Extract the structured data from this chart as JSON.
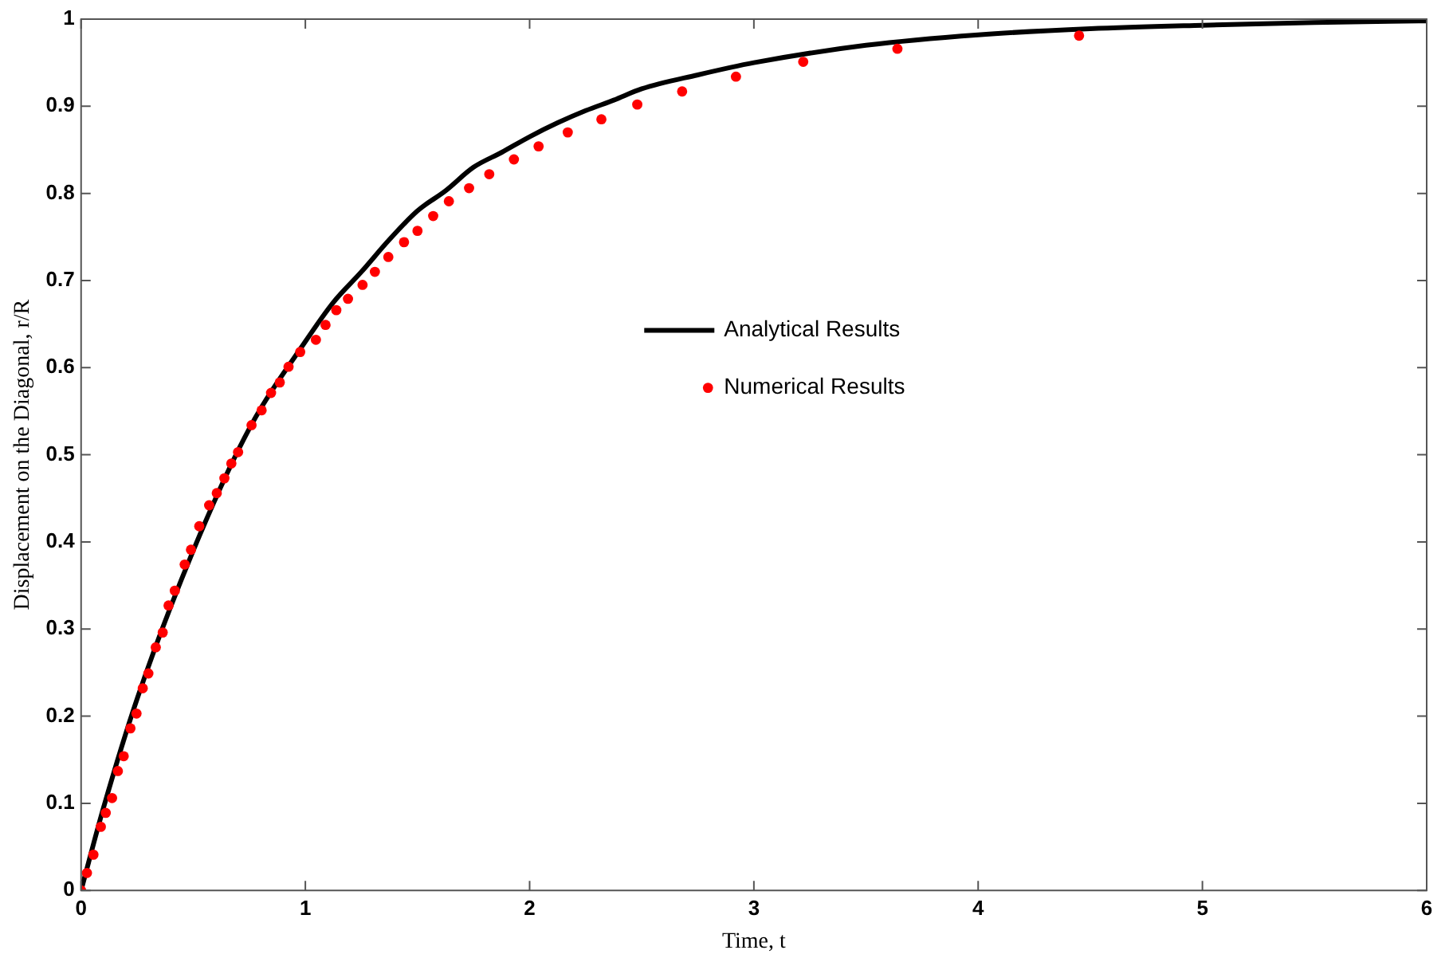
{
  "chart_data": {
    "type": "line",
    "xlabel": "Time, t",
    "ylabel": "Displacement on the Diagonal, r/R",
    "xlim": [
      0,
      6
    ],
    "ylim": [
      0,
      1
    ],
    "xticks": [
      0,
      1,
      2,
      3,
      4,
      5,
      6
    ],
    "yticks": [
      0,
      0.1,
      0.2,
      0.3,
      0.4,
      0.5,
      0.6,
      0.7,
      0.8,
      0.9,
      1
    ],
    "grid": false,
    "legend": "center",
    "series": [
      {
        "name": "Analytical Results",
        "type": "line",
        "color": "#000000",
        "marker": "none",
        "x": [
          0,
          0.1,
          0.25,
          0.5,
          0.75,
          1,
          1.125,
          1.25,
          1.375,
          1.5,
          1.625,
          1.75,
          1.875,
          2,
          2.125,
          2.25,
          2.375,
          2.5,
          2.75,
          3,
          3.5,
          4,
          4.5,
          5,
          5.5,
          6
        ],
        "values": [
          0,
          0.095,
          0.22,
          0.39,
          0.53,
          0.63,
          0.675,
          0.71,
          0.747,
          0.78,
          0.803,
          0.83,
          0.847,
          0.865,
          0.881,
          0.895,
          0.907,
          0.92,
          0.936,
          0.95,
          0.97,
          0.982,
          0.989,
          0.993,
          0.996,
          0.998
        ]
      },
      {
        "name": "Numerical Results",
        "type": "scatter",
        "color": "#ff0000",
        "marker": "circle",
        "x": [
          0,
          0.026,
          0.055,
          0.088,
          0.11,
          0.138,
          0.164,
          0.19,
          0.22,
          0.247,
          0.275,
          0.3,
          0.333,
          0.364,
          0.39,
          0.418,
          0.462,
          0.49,
          0.527,
          0.571,
          0.605,
          0.639,
          0.67,
          0.7,
          0.76,
          0.805,
          0.847,
          0.886,
          0.925,
          0.977,
          1.047,
          1.09,
          1.138,
          1.19,
          1.255,
          1.31,
          1.37,
          1.44,
          1.5,
          1.57,
          1.64,
          1.73,
          1.82,
          1.93,
          2.04,
          2.17,
          2.32,
          2.48,
          2.68,
          2.92,
          3.22,
          3.64,
          4.45
        ],
        "values": [
          0,
          0.02,
          0.041,
          0.073,
          0.089,
          0.106,
          0.137,
          0.154,
          0.186,
          0.203,
          0.232,
          0.249,
          0.279,
          0.296,
          0.327,
          0.344,
          0.374,
          0.391,
          0.418,
          0.442,
          0.456,
          0.473,
          0.49,
          0.503,
          0.534,
          0.551,
          0.571,
          0.583,
          0.601,
          0.618,
          0.632,
          0.649,
          0.666,
          0.679,
          0.695,
          0.71,
          0.727,
          0.744,
          0.757,
          0.774,
          0.791,
          0.806,
          0.822,
          0.839,
          0.854,
          0.87,
          0.885,
          0.902,
          0.917,
          0.934,
          0.951,
          0.966,
          0.981
        ]
      }
    ]
  }
}
